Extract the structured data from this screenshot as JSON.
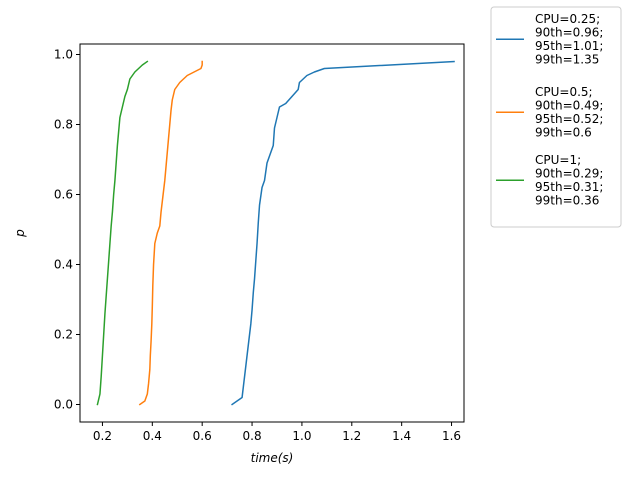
{
  "chart_data": {
    "type": "line",
    "title": "",
    "xlabel": "time(s)",
    "ylabel": "p",
    "xlim": [
      0.11,
      1.65
    ],
    "ylim": [
      -0.05,
      1.03
    ],
    "xticks": [
      0.2,
      0.4,
      0.6,
      0.8,
      1.0,
      1.2,
      1.4,
      1.6
    ],
    "xtick_labels": [
      "0.2",
      "0.4",
      "0.6",
      "0.8",
      "1.0",
      "1.2",
      "1.4",
      "1.6"
    ],
    "yticks": [
      0.0,
      0.2,
      0.4,
      0.6,
      0.8,
      1.0
    ],
    "ytick_labels": [
      "0.0",
      "0.2",
      "0.4",
      "0.6",
      "0.8",
      "1.0"
    ],
    "grid": false,
    "legend_position": "outside-right",
    "series": [
      {
        "name": "CPU=0.25; 90th=0.96; 95th=1.01; 99th=1.35",
        "legend_lines": [
          "CPU=0.25;",
          "90th=0.96;",
          "95th=1.01;",
          "99th=1.35"
        ],
        "color": "#1f77b4",
        "x": [
          0.72,
          0.76,
          0.765,
          0.77,
          0.775,
          0.78,
          0.785,
          0.79,
          0.795,
          0.8,
          0.805,
          0.81,
          0.815,
          0.82,
          0.825,
          0.83,
          0.84,
          0.85,
          0.86,
          0.87,
          0.885,
          0.89,
          0.9,
          0.91,
          0.935,
          0.96,
          0.985,
          0.99,
          1.02,
          1.05,
          1.09,
          1.61
        ],
        "y": [
          0.0,
          0.02,
          0.05,
          0.08,
          0.11,
          0.14,
          0.17,
          0.2,
          0.23,
          0.27,
          0.32,
          0.36,
          0.41,
          0.46,
          0.52,
          0.57,
          0.62,
          0.64,
          0.69,
          0.71,
          0.74,
          0.79,
          0.82,
          0.85,
          0.86,
          0.88,
          0.9,
          0.92,
          0.94,
          0.95,
          0.96,
          0.98
        ]
      },
      {
        "name": "CPU=0.5; 90th=0.49; 95th=0.52; 99th=0.6",
        "legend_lines": [
          "CPU=0.5;",
          "90th=0.49;",
          "95th=0.52;",
          "99th=0.6"
        ],
        "color": "#ff7f0e",
        "x": [
          0.35,
          0.37,
          0.38,
          0.385,
          0.39,
          0.392,
          0.395,
          0.398,
          0.4,
          0.402,
          0.405,
          0.41,
          0.42,
          0.43,
          0.435,
          0.44,
          0.445,
          0.45,
          0.455,
          0.46,
          0.465,
          0.47,
          0.475,
          0.48,
          0.49,
          0.51,
          0.54,
          0.595,
          0.6,
          0.6
        ],
        "y": [
          0.0,
          0.01,
          0.03,
          0.06,
          0.1,
          0.14,
          0.18,
          0.23,
          0.28,
          0.34,
          0.4,
          0.46,
          0.49,
          0.51,
          0.55,
          0.58,
          0.61,
          0.64,
          0.68,
          0.72,
          0.76,
          0.8,
          0.84,
          0.87,
          0.9,
          0.92,
          0.94,
          0.96,
          0.97,
          0.98
        ]
      },
      {
        "name": "CPU=1; 90th=0.29; 95th=0.31; 99th=0.36",
        "legend_lines": [
          "CPU=1;",
          "90th=0.29;",
          "95th=0.31;",
          "99th=0.36"
        ],
        "color": "#2ca02c",
        "x": [
          0.18,
          0.19,
          0.195,
          0.2,
          0.205,
          0.21,
          0.215,
          0.22,
          0.225,
          0.23,
          0.235,
          0.24,
          0.245,
          0.25,
          0.255,
          0.26,
          0.265,
          0.27,
          0.28,
          0.29,
          0.3,
          0.31,
          0.33,
          0.36,
          0.38
        ],
        "y": [
          0.0,
          0.03,
          0.08,
          0.14,
          0.2,
          0.26,
          0.31,
          0.36,
          0.41,
          0.46,
          0.51,
          0.55,
          0.6,
          0.64,
          0.69,
          0.74,
          0.78,
          0.82,
          0.85,
          0.88,
          0.9,
          0.93,
          0.95,
          0.97,
          0.98
        ]
      }
    ]
  }
}
